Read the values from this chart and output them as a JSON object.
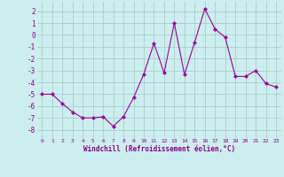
{
  "x": [
    0,
    1,
    2,
    3,
    4,
    5,
    6,
    7,
    8,
    9,
    10,
    11,
    12,
    13,
    14,
    15,
    16,
    17,
    18,
    19,
    20,
    21,
    22,
    23
  ],
  "y": [
    -5.0,
    -5.0,
    -5.8,
    -6.5,
    -7.0,
    -7.0,
    -6.9,
    -7.7,
    -6.9,
    -5.3,
    -3.3,
    -0.7,
    -3.2,
    1.0,
    -3.35,
    -0.6,
    2.2,
    0.5,
    -0.2,
    -3.5,
    -3.5,
    -3.0,
    -4.1,
    -4.4
  ],
  "line_color": "#990099",
  "marker": "D",
  "marker_size": 2,
  "bg_color": "#cceeee",
  "grid_color": "#aacccc",
  "xlabel": "Windchill (Refroidissement éolien,°C)",
  "xlabel_color": "#880088",
  "tick_color": "#880088",
  "yticks": [
    2,
    1,
    0,
    -1,
    -2,
    -3,
    -4,
    -5,
    -6,
    -7,
    -8
  ],
  "xlim": [
    -0.5,
    23.5
  ],
  "ylim": [
    -8.7,
    2.8
  ],
  "figsize": [
    3.2,
    2.0
  ],
  "dpi": 100
}
